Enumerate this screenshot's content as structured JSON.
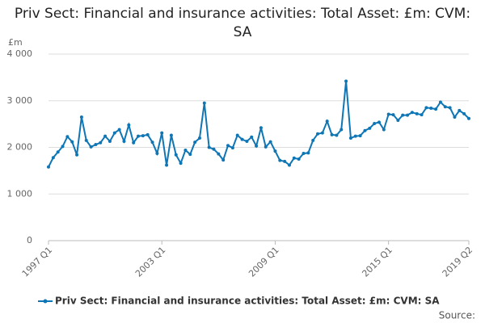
{
  "chart_data": {
    "type": "line",
    "title": "Priv Sect: Financial and insurance activities: Total Asset: £m: CVM: SA",
    "y_label": "£m",
    "source": "Source:",
    "categories": [
      "1997 Q1",
      null,
      null,
      null,
      null,
      null,
      null,
      null,
      null,
      null,
      null,
      null,
      null,
      null,
      null,
      null,
      null,
      null,
      null,
      null,
      null,
      null,
      null,
      null,
      "2003 Q1",
      null,
      null,
      null,
      null,
      null,
      null,
      null,
      null,
      null,
      null,
      null,
      null,
      null,
      null,
      null,
      null,
      null,
      null,
      null,
      null,
      null,
      null,
      null,
      "2009 Q1",
      null,
      null,
      null,
      null,
      null,
      null,
      null,
      null,
      null,
      null,
      null,
      null,
      null,
      null,
      null,
      null,
      null,
      null,
      null,
      null,
      null,
      null,
      null,
      "2015 Q1",
      null,
      null,
      null,
      null,
      null,
      null,
      null,
      null,
      null,
      null,
      null,
      null,
      null,
      null,
      null,
      null,
      "2019 Q2"
    ],
    "series": [
      {
        "name": "Priv Sect: Financial and insurance activities: Total Asset: £m: CVM: SA",
        "color": "#0f76b5",
        "values": [
          1580,
          1780,
          1900,
          2020,
          2230,
          2120,
          1840,
          2650,
          2150,
          2010,
          2060,
          2100,
          2240,
          2130,
          2310,
          2380,
          2130,
          2480,
          2100,
          2240,
          2250,
          2270,
          2110,
          1870,
          2310,
          1620,
          2260,
          1840,
          1660,
          1940,
          1850,
          2110,
          2200,
          2950,
          2000,
          1960,
          1860,
          1730,
          2040,
          1990,
          2260,
          2170,
          2130,
          2220,
          2030,
          2420,
          2010,
          2120,
          1920,
          1720,
          1700,
          1620,
          1770,
          1750,
          1870,
          1880,
          2150,
          2290,
          2310,
          2560,
          2270,
          2260,
          2380,
          3420,
          2200,
          2240,
          2250,
          2360,
          2410,
          2510,
          2540,
          2380,
          2710,
          2700,
          2580,
          2690,
          2690,
          2750,
          2720,
          2700,
          2850,
          2840,
          2820,
          2970,
          2870,
          2850,
          2650,
          2790,
          2720,
          2620
        ]
      }
    ],
    "ylim": [
      0,
      4000
    ],
    "yticks": [
      0,
      {
        "value": 1000,
        "label": "1 000"
      },
      {
        "value": 2000,
        "label": "2 000"
      },
      {
        "value": 3000,
        "label": "3 000"
      },
      {
        "value": 4000,
        "label": "4 000"
      }
    ],
    "grid": true
  }
}
